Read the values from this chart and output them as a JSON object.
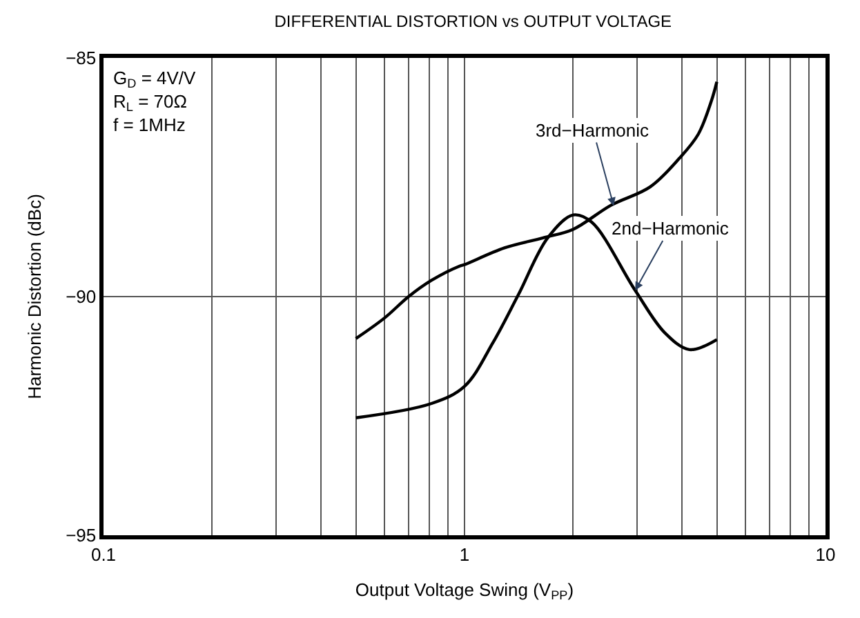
{
  "chart_data": {
    "type": "line",
    "title": "DIFFERENTIAL DISTORTION vs OUTPUT VOLTAGE",
    "xlabel": "Output Voltage Swing (V$_{PP}$)",
    "ylabel": "Harmonic Distortion (dBc)",
    "log": "x",
    "xlim": [
      0.1,
      10
    ],
    "xticks": [
      0.1,
      {
        "value": 0.2,
        "label": null
      },
      {
        "value": 0.3,
        "label": null
      },
      {
        "value": 0.4,
        "label": null
      },
      {
        "value": 0.5,
        "label": null
      },
      {
        "value": 0.6,
        "label": null
      },
      {
        "value": 0.7,
        "label": null
      },
      {
        "value": 0.8,
        "label": null
      },
      {
        "value": 0.9,
        "label": null
      },
      1,
      {
        "value": 2,
        "label": null
      },
      {
        "value": 3,
        "label": null
      },
      {
        "value": 4,
        "label": null
      },
      {
        "value": 5,
        "label": null
      },
      {
        "value": 6,
        "label": null
      },
      {
        "value": 7,
        "label": null
      },
      {
        "value": 8,
        "label": null
      },
      {
        "value": 9,
        "label": null
      },
      10
    ],
    "ylim": [
      -95,
      -85
    ],
    "yticks": [
      {
        "value": -95,
        "label": "−95"
      },
      {
        "value": -90,
        "label": "−90"
      },
      {
        "value": -85,
        "label": "−85"
      }
    ],
    "grid": true,
    "marker": "none",
    "line_style": "solid",
    "series": [
      {
        "color": "#000000",
        "x": [
          0.5,
          0.6,
          0.7,
          0.81,
          0.97,
          1.0,
          1.29,
          1.65,
          2.0,
          2.54,
          3.27,
          3.94,
          4.44,
          4.83,
          5.0
        ],
        "values": [
          -90.88,
          -90.45,
          -90.0,
          -89.66,
          -89.36,
          -89.33,
          -88.98,
          -88.77,
          -88.59,
          -88.09,
          -87.7,
          -87.1,
          -86.6,
          -85.9,
          -85.5
        ]
      },
      {
        "color": "#000000",
        "x": [
          0.5,
          0.81,
          1.0,
          1.2,
          1.41,
          1.7,
          2.0,
          2.25,
          2.97,
          3.59,
          4.2,
          5.0
        ],
        "values": [
          -92.54,
          -92.24,
          -91.88,
          -90.96,
          -89.96,
          -88.77,
          -88.29,
          -88.44,
          -89.87,
          -90.76,
          -91.11,
          -90.9
        ]
      }
    ],
    "annotations": [
      "G$_{D}$ = 4V/V\nR$_{L}$ = 70Ω\nf = 1MHz",
      {
        "text": "3rd−Harmonic",
        "x": 2.59,
        "y": -88.1
      },
      {
        "text": "2nd−Harmonic",
        "x": 2.97,
        "y": -89.87
      }
    ]
  }
}
